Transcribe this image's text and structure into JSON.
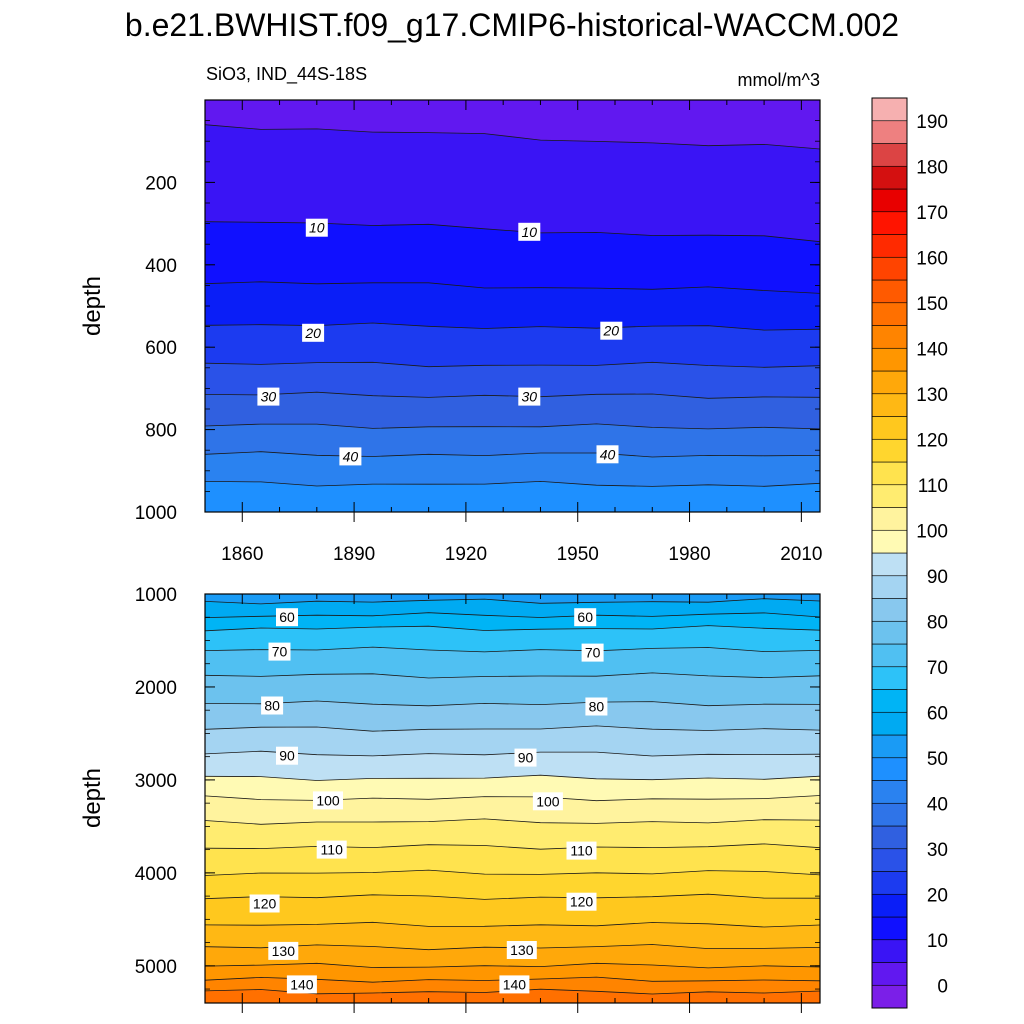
{
  "title": "b.e21.BWHIST.f09_g17.CMIP6-historical-WACCM.002",
  "subtitle_left": "SiO3, IND_44S-18S",
  "subtitle_right": "mmol/m^3",
  "chart_data": [
    {
      "type": "heatmap",
      "panel": "upper",
      "title": "",
      "ylabel": "depth",
      "xlabel": "",
      "xlim": [
        1850,
        2015
      ],
      "ylim": [
        1000,
        0
      ],
      "x_ticks": [
        1860,
        1890,
        1920,
        1950,
        1980,
        2010
      ],
      "y_ticks": [
        200,
        400,
        600,
        800,
        1000
      ],
      "contour_interval": 5,
      "contour_labels": [
        {
          "value": 10,
          "x": 1880,
          "depth": 310
        },
        {
          "value": 10,
          "x": 1937,
          "depth": 320
        },
        {
          "value": 20,
          "x": 1879,
          "depth": 565
        },
        {
          "value": 20,
          "x": 1959,
          "depth": 560
        },
        {
          "value": 30,
          "x": 1867,
          "depth": 720
        },
        {
          "value": 30,
          "x": 1937,
          "depth": 720
        },
        {
          "value": 40,
          "x": 1889,
          "depth": 865
        },
        {
          "value": 40,
          "x": 1958,
          "depth": 860
        }
      ],
      "contours": [
        {
          "value": 5,
          "depth_start": 60,
          "depth_end": 120
        },
        {
          "value": 10,
          "depth_start": 290,
          "depth_end": 340
        },
        {
          "value": 15,
          "depth_start": 440,
          "depth_end": 465
        },
        {
          "value": 20,
          "depth_start": 545,
          "depth_end": 555
        },
        {
          "value": 25,
          "depth_start": 640,
          "depth_end": 645
        },
        {
          "value": 30,
          "depth_start": 715,
          "depth_end": 720
        },
        {
          "value": 35,
          "depth_start": 790,
          "depth_end": 795
        },
        {
          "value": 40,
          "depth_start": 860,
          "depth_end": 862
        },
        {
          "value": 45,
          "depth_start": 930,
          "depth_end": 935
        }
      ]
    },
    {
      "type": "heatmap",
      "panel": "lower",
      "title": "",
      "ylabel": "depth",
      "xlabel": "",
      "xlim": [
        1850,
        2015
      ],
      "ylim": [
        5400,
        1000
      ],
      "y_ticks": [
        1000,
        2000,
        3000,
        4000,
        5000
      ],
      "contour_interval": 5,
      "contour_labels": [
        {
          "value": 60,
          "x": 1872,
          "depth": 1250
        },
        {
          "value": 60,
          "x": 1952,
          "depth": 1250
        },
        {
          "value": 70,
          "x": 1870,
          "depth": 1620
        },
        {
          "value": 70,
          "x": 1954,
          "depth": 1630
        },
        {
          "value": 80,
          "x": 1868,
          "depth": 2200
        },
        {
          "value": 80,
          "x": 1955,
          "depth": 2210
        },
        {
          "value": 90,
          "x": 1872,
          "depth": 2740
        },
        {
          "value": 90,
          "x": 1936,
          "depth": 2760
        },
        {
          "value": 100,
          "x": 1883,
          "depth": 3220
        },
        {
          "value": 100,
          "x": 1942,
          "depth": 3230
        },
        {
          "value": 110,
          "x": 1884,
          "depth": 3750
        },
        {
          "value": 110,
          "x": 1951,
          "depth": 3760
        },
        {
          "value": 120,
          "x": 1866,
          "depth": 4330
        },
        {
          "value": 120,
          "x": 1951,
          "depth": 4310
        },
        {
          "value": 130,
          "x": 1871,
          "depth": 4840
        },
        {
          "value": 130,
          "x": 1935,
          "depth": 4830
        },
        {
          "value": 140,
          "x": 1876,
          "depth": 5200
        },
        {
          "value": 140,
          "x": 1933,
          "depth": 5200
        }
      ],
      "contours": [
        {
          "value": 55,
          "depth": 1080
        },
        {
          "value": 60,
          "depth": 1230
        },
        {
          "value": 65,
          "depth": 1370
        },
        {
          "value": 70,
          "depth": 1600
        },
        {
          "value": 75,
          "depth": 1880
        },
        {
          "value": 80,
          "depth": 2180
        },
        {
          "value": 85,
          "depth": 2450
        },
        {
          "value": 90,
          "depth": 2720
        },
        {
          "value": 95,
          "depth": 2980
        },
        {
          "value": 100,
          "depth": 3200
        },
        {
          "value": 105,
          "depth": 3450
        },
        {
          "value": 110,
          "depth": 3720
        },
        {
          "value": 115,
          "depth": 4000
        },
        {
          "value": 120,
          "depth": 4260
        },
        {
          "value": 125,
          "depth": 4560
        },
        {
          "value": 130,
          "depth": 4800
        },
        {
          "value": 135,
          "depth": 5000
        },
        {
          "value": 140,
          "depth": 5150
        },
        {
          "value": 145,
          "depth": 5280
        }
      ]
    }
  ],
  "colorbar": {
    "min": -5,
    "max": 195,
    "step": 5,
    "labels": [
      0,
      10,
      20,
      30,
      40,
      50,
      60,
      70,
      80,
      90,
      100,
      110,
      120,
      130,
      140,
      150,
      160,
      170,
      180,
      190
    ],
    "colors": [
      "#7B1FE8",
      "#6118F0",
      "#3A14F5",
      "#1010FF",
      "#0A1EF7",
      "#1C3BF0",
      "#2A52E8",
      "#3060E0",
      "#2F74E8",
      "#2A82F0",
      "#1E90FF",
      "#1A9BF5",
      "#00AAF2",
      "#00B4F5",
      "#2DC2F8",
      "#50C0F2",
      "#6CC2EE",
      "#88C8EE",
      "#A4D4F2",
      "#BEE0F4",
      "#FFFAB4",
      "#FFF39E",
      "#FFEC70",
      "#FFE34E",
      "#FFD62E",
      "#FFC81E",
      "#FFB814",
      "#FFA80A",
      "#FF9600",
      "#FF8400",
      "#FF7000",
      "#FF5A00",
      "#FF4400",
      "#FF2A00",
      "#FF1400",
      "#E80000",
      "#D41010",
      "#DC4444",
      "#EE8080",
      "#F6B0B0"
    ]
  }
}
